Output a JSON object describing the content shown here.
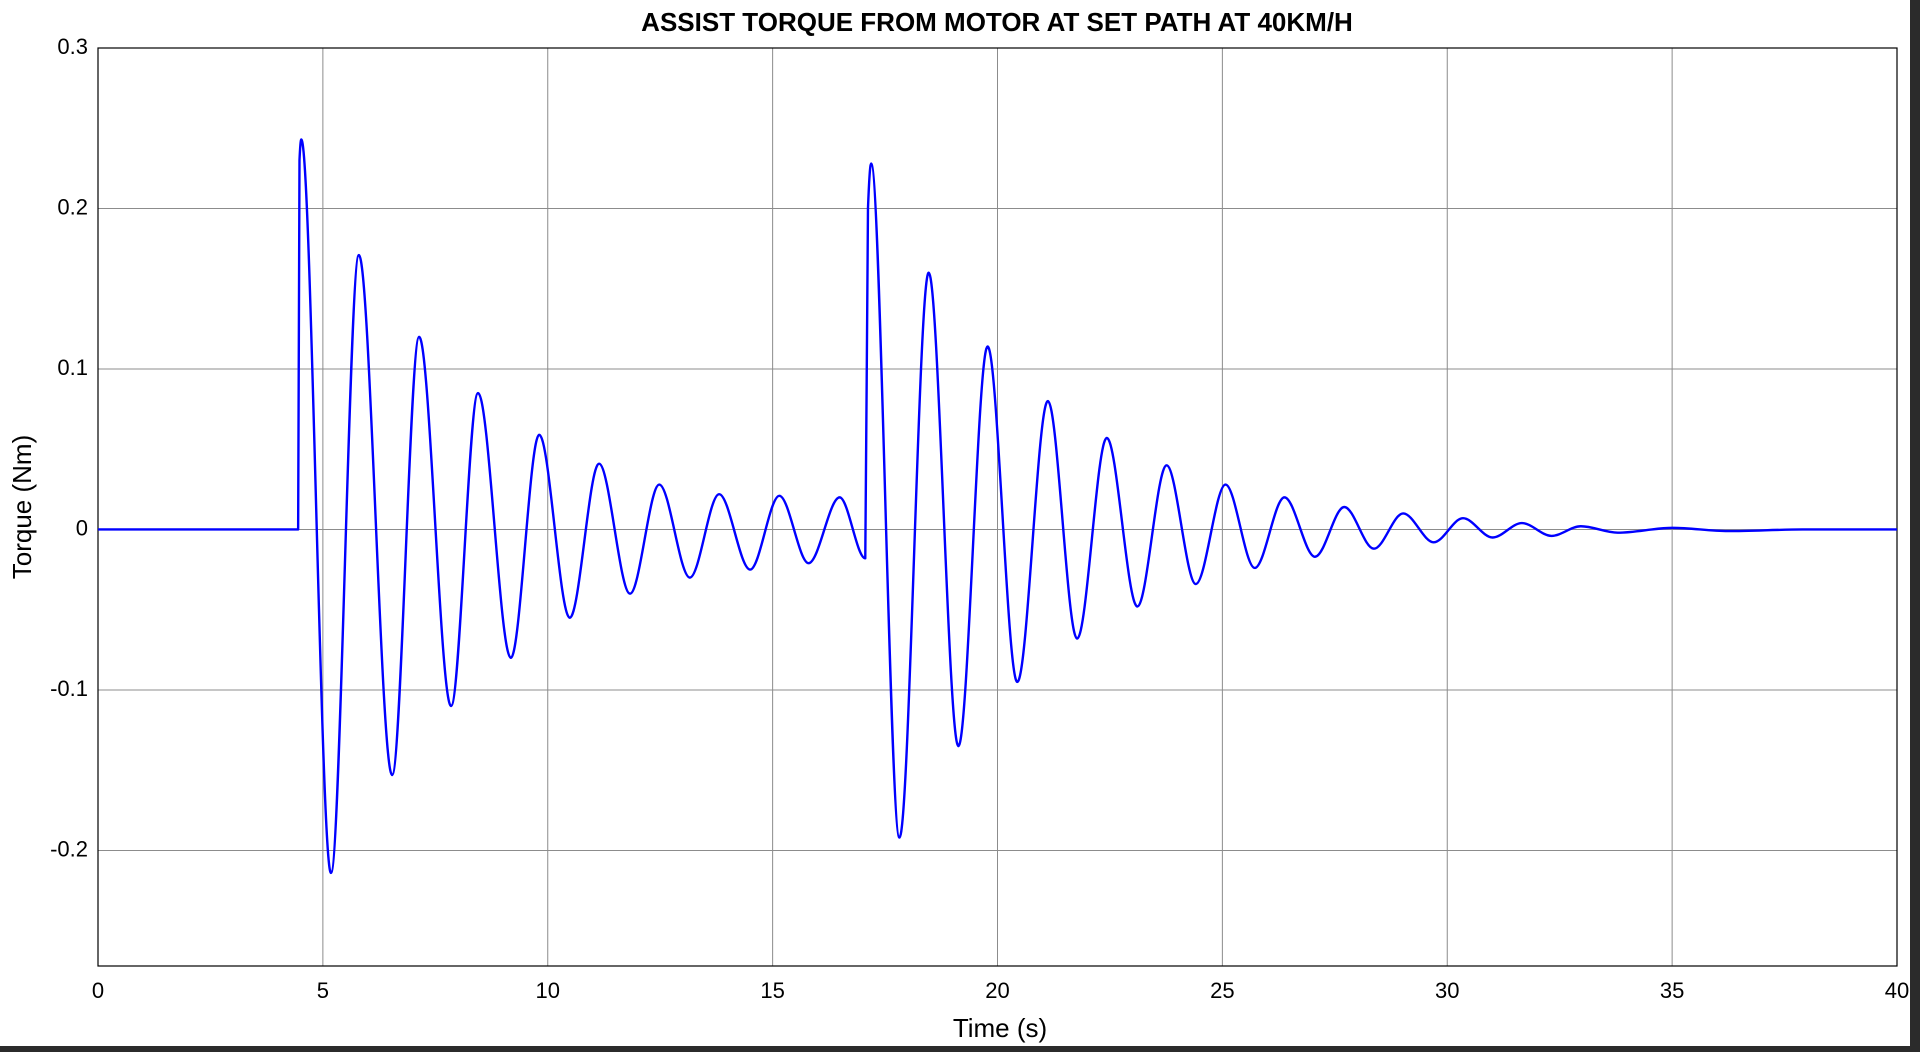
{
  "chart_data": {
    "type": "line",
    "title": "ASSIST TORQUE FROM MOTOR AT SET PATH AT 40KM/H",
    "x_label": "Time (s)",
    "y_label": "Torque (Nm)",
    "x": [
      0,
      4.45,
      4.48,
      4.52,
      5.18,
      5.8,
      6.54,
      7.14,
      7.85,
      8.45,
      9.18,
      9.81,
      10.49,
      11.14,
      11.83,
      12.48,
      13.16,
      13.81,
      14.5,
      15.15,
      15.8,
      16.49,
      17.06,
      17.12,
      17.19,
      17.82,
      18.47,
      19.13,
      19.78,
      20.44,
      21.12,
      21.77,
      22.43,
      23.11,
      23.76,
      24.41,
      25.07,
      25.72,
      26.38,
      27.06,
      27.71,
      28.37,
      29.02,
      29.7,
      30.35,
      31.01,
      31.66,
      32.32,
      32.97,
      33.79,
      35.01,
      36.24,
      37.9,
      40
    ],
    "values": [
      0,
      0,
      0.23,
      0.243,
      -0.214,
      0.171,
      -0.153,
      0.12,
      -0.11,
      0.085,
      -0.08,
      0.059,
      -0.055,
      0.041,
      -0.04,
      0.028,
      -0.03,
      0.022,
      -0.025,
      0.021,
      -0.021,
      0.02,
      -0.018,
      0.2,
      0.228,
      -0.192,
      0.16,
      -0.135,
      0.114,
      -0.095,
      0.08,
      -0.068,
      0.057,
      -0.048,
      0.04,
      -0.034,
      0.028,
      -0.024,
      0.02,
      -0.017,
      0.014,
      -0.012,
      0.01,
      -0.008,
      0.007,
      -0.005,
      0.004,
      -0.004,
      0.002,
      -0.002,
      0.001,
      -0.001,
      0,
      0
    ],
    "color": "#0000ff",
    "xlim": [
      0,
      40
    ],
    "xticks": [
      0,
      5,
      10,
      15,
      20,
      25,
      30,
      35,
      40
    ],
    "ylim": [
      -0.272,
      0.3
    ],
    "yticks": [
      -0.2,
      -0.1,
      0,
      0.1,
      0.2,
      0.3
    ],
    "grid": true
  }
}
